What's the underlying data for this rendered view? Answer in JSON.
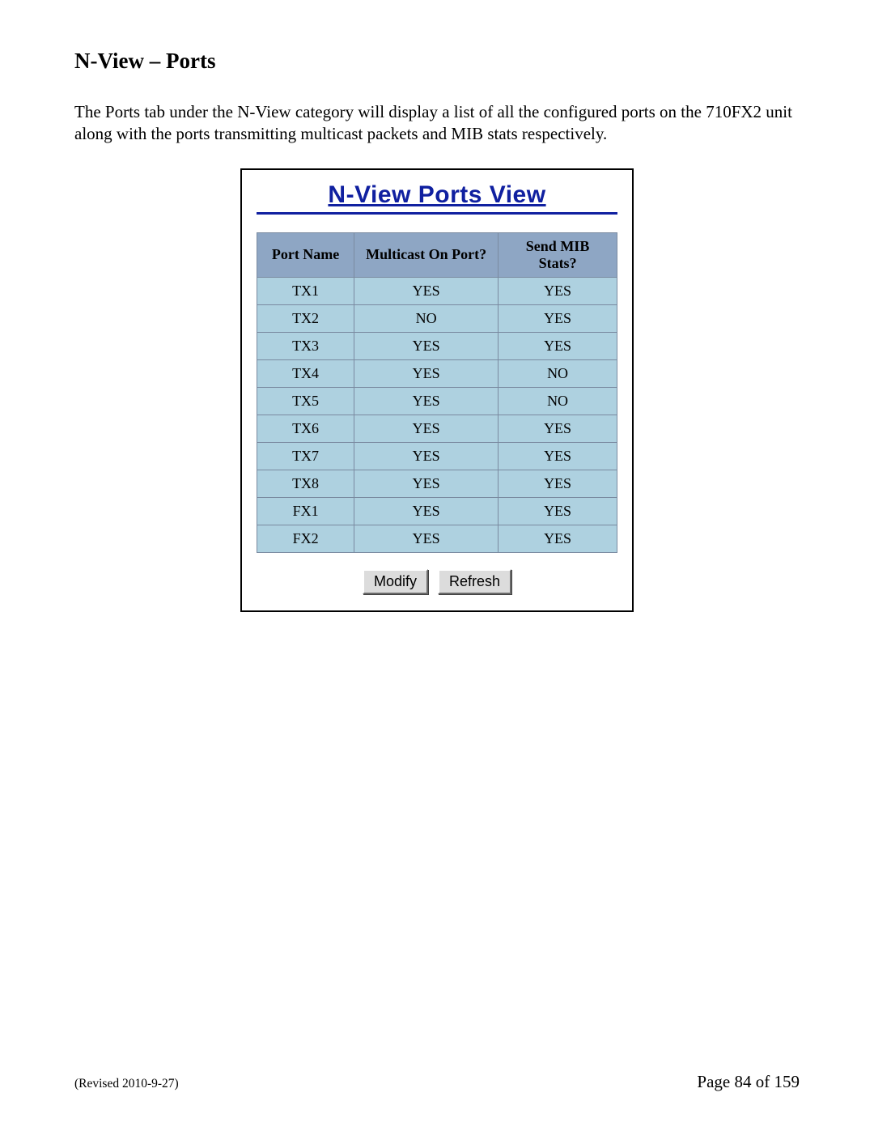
{
  "heading": "N-View – Ports",
  "paragraph": "The Ports tab under the N-View category will display a list of all the configured ports on the 710FX2 unit along with the ports transmitting multicast packets and MIB stats respectively.",
  "panel": {
    "title": "N-View Ports View",
    "title_color": "#1020a0",
    "title_fontsize": 30,
    "border_color": "#000000",
    "table": {
      "type": "table",
      "header_bg": "#8ea6c4",
      "cell_bg": "#aed1e0",
      "border_color": "#7a8aa0",
      "columns": [
        "Port Name",
        "Multicast On Port?",
        "Send MIB Stats?"
      ],
      "col_widths": [
        "27%",
        "40%",
        "33%"
      ],
      "rows": [
        [
          "TX1",
          "YES",
          "YES"
        ],
        [
          "TX2",
          "NO",
          "YES"
        ],
        [
          "TX3",
          "YES",
          "YES"
        ],
        [
          "TX4",
          "YES",
          "NO"
        ],
        [
          "TX5",
          "YES",
          "NO"
        ],
        [
          "TX6",
          "YES",
          "YES"
        ],
        [
          "TX7",
          "YES",
          "YES"
        ],
        [
          "TX8",
          "YES",
          "YES"
        ],
        [
          "FX1",
          "YES",
          "YES"
        ],
        [
          "FX2",
          "YES",
          "YES"
        ]
      ]
    },
    "buttons": {
      "modify": "Modify",
      "refresh": "Refresh"
    }
  },
  "footer": {
    "revised": "(Revised 2010-9-27)",
    "page": "Page 84 of 159"
  },
  "colors": {
    "page_bg": "#ffffff",
    "text": "#000000"
  }
}
